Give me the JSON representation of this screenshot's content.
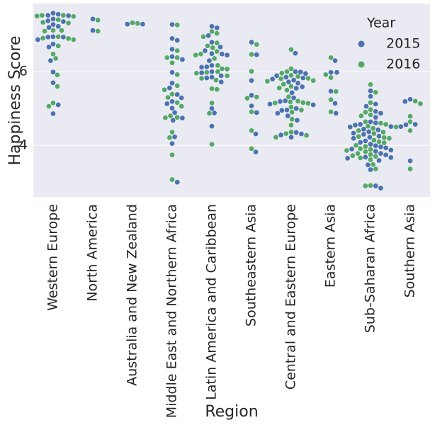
{
  "chart_data": {
    "type": "swarm",
    "x_label": "Region",
    "y_label": "Happiness Score",
    "categories": [
      "Western Europe",
      "North America",
      "Australia and New Zealand",
      "Middle East and Northern Africa",
      "Latin America and Caribbean",
      "Southeastern Asia",
      "Central and Eastern Europe",
      "Eastern Asia",
      "Sub-Saharan Africa",
      "Southern Asia"
    ],
    "legend_title": "Year",
    "legend_position": "upper right",
    "ylim": [
      2.6,
      7.85
    ],
    "yticks": [
      4,
      6
    ],
    "grid": true,
    "series": [
      {
        "name": "2015",
        "color": "#4c72b0",
        "values": [
          [
            7.59,
            7.56,
            7.53,
            7.52,
            7.43,
            7.38,
            7.36,
            7.28,
            7.23,
            7.2,
            6.95,
            6.94,
            6.94,
            6.87,
            6.75,
            6.67,
            6.3,
            5.99,
            5.7,
            5.1,
            4.86
          ],
          [
            7.43,
            7.12
          ],
          [
            7.29,
            7.29
          ],
          [
            7.28,
            6.9,
            6.85,
            6.61,
            6.41,
            6.33,
            5.98,
            5.69,
            5.56,
            5.38,
            5.29,
            5.19,
            5.13,
            5.01,
            4.89,
            4.74,
            4.68,
            4.23,
            4.05,
            3.0
          ],
          [
            7.23,
            7.19,
            6.98,
            6.8,
            6.67,
            6.57,
            6.49,
            6.48,
            6.45,
            6.3,
            6.17,
            6.13,
            6.12,
            6.0,
            5.97,
            5.89,
            5.85,
            5.83,
            5.72,
            4.88,
            4.52,
            5.0
          ],
          [
            6.8,
            6.46,
            5.76,
            5.36,
            5.07,
            4.89,
            4.31,
            3.82
          ],
          [
            6.5,
            6.0,
            5.99,
            5.95,
            5.89,
            5.85,
            5.83,
            5.8,
            5.77,
            5.72,
            5.69,
            5.59,
            5.55,
            5.43,
            5.29,
            5.21,
            5.19,
            5.12,
            5.1,
            5.0,
            4.96,
            4.95,
            4.87,
            4.8,
            4.68,
            4.35,
            4.31,
            4.28,
            4.22
          ],
          [
            6.3,
            5.98,
            5.98,
            5.47,
            5.14,
            4.87
          ],
          [
            5.48,
            5.33,
            5.12,
            5.06,
            4.92,
            4.87,
            4.76,
            4.64,
            4.61,
            4.57,
            4.55,
            4.51,
            4.5,
            4.44,
            4.42,
            4.37,
            4.33,
            4.3,
            4.25,
            4.22,
            4.19,
            4.12,
            4.08,
            4.03,
            3.99,
            3.96,
            3.93,
            3.9,
            3.87,
            3.84,
            3.78,
            3.74,
            3.68,
            3.67,
            3.65,
            3.59,
            3.47,
            3.34,
            2.9,
            2.84
          ],
          [
            5.25,
            5.19,
            4.57,
            4.56,
            4.51,
            3.58
          ]
        ]
      },
      {
        "name": "2016",
        "color": "#55a868",
        "values": [
          [
            7.53,
            7.53,
            7.51,
            7.5,
            7.41,
            7.34,
            7.32,
            7.12,
            7.12,
            7.1,
            6.95,
            6.91,
            6.9,
            6.87,
            6.7,
            6.48,
            6.36,
            5.91,
            5.6,
            5.15,
            5.06
          ],
          [
            7.4,
            7.1
          ],
          [
            7.31,
            7.33
          ],
          [
            7.27,
            6.57,
            6.38,
            6.38,
            6.24,
            5.92,
            5.62,
            5.51,
            5.39,
            5.3,
            5.16,
            5.06,
            4.8,
            4.76,
            4.75,
            4.36,
            4.21,
            3.74,
            3.07
          ],
          [
            7.09,
            7.04,
            6.95,
            6.78,
            6.7,
            6.65,
            6.55,
            6.48,
            6.45,
            6.36,
            6.17,
            6.08,
            6.07,
            6.0,
            5.98,
            5.96,
            5.89,
            5.82,
            5.77,
            5.54,
            5.52,
            5.15,
            4.87,
            4.03
          ],
          [
            6.74,
            6.47,
            6.01,
            5.31,
            5.28,
            4.91,
            4.4,
            3.91
          ],
          [
            6.6,
            6.08,
            6.0,
            5.96,
            5.9,
            5.87,
            5.82,
            5.81,
            5.76,
            5.74,
            5.66,
            5.6,
            5.56,
            5.5,
            5.32,
            5.2,
            5.18,
            5.16,
            5.15,
            5.14,
            5.04,
            4.96,
            4.9,
            4.71,
            4.55,
            4.36,
            4.32,
            4.27,
            4.22
          ],
          [
            6.38,
            5.92,
            5.84,
            5.46,
            5.24,
            4.91
          ],
          [
            5.65,
            5.44,
            5.16,
            4.97,
            4.9,
            4.83,
            4.8,
            4.64,
            4.6,
            4.57,
            4.52,
            4.5,
            4.46,
            4.4,
            4.36,
            4.32,
            4.24,
            4.21,
            4.19,
            4.14,
            4.1,
            4.07,
            4.0,
            3.97,
            3.91,
            3.89,
            3.86,
            3.83,
            3.78,
            3.75,
            3.72,
            3.7,
            3.66,
            3.61,
            3.48,
            3.36,
            2.91,
            2.9
          ],
          [
            5.2,
            5.13,
            4.79,
            4.64,
            4.4,
            3.36
          ]
        ]
      }
    ]
  }
}
